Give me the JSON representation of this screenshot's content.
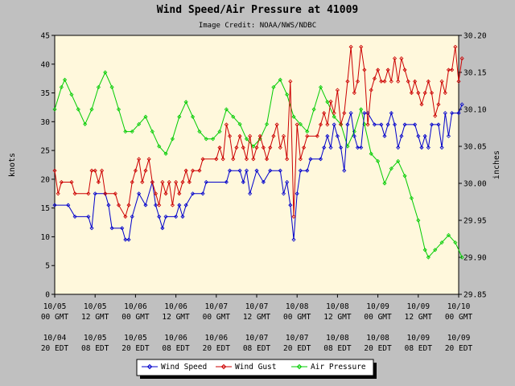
{
  "chart_data": {
    "type": "line",
    "title": "Wind Speed/Air Pressure at 41009",
    "subtitle": "Image Credit: NOAA/NWS/NDBC",
    "ylabel_left": "knots",
    "ylabel_right": "inches",
    "ylim_left": [
      0,
      45
    ],
    "ylim_right": [
      29.85,
      30.2
    ],
    "yticks_left": [
      "0",
      "5",
      "10",
      "15",
      "20",
      "25",
      "30",
      "35",
      "40",
      "45"
    ],
    "yticks_right": [
      "29.85",
      "29.90",
      "29.95",
      "30.00",
      "30.05",
      "30.10",
      "30.15",
      "30.20"
    ],
    "x_domain_hours": [
      0,
      120
    ],
    "x_ticks": [
      {
        "gmt": [
          "10/05",
          "00 GMT"
        ],
        "edt": [
          "10/04",
          "20 EDT"
        ]
      },
      {
        "gmt": [
          "10/05",
          "12 GMT"
        ],
        "edt": [
          "10/05",
          "08 EDT"
        ]
      },
      {
        "gmt": [
          "10/06",
          "00 GMT"
        ],
        "edt": [
          "10/05",
          "20 EDT"
        ]
      },
      {
        "gmt": [
          "10/06",
          "12 GMT"
        ],
        "edt": [
          "10/06",
          "08 EDT"
        ]
      },
      {
        "gmt": [
          "10/07",
          "00 GMT"
        ],
        "edt": [
          "10/06",
          "20 EDT"
        ]
      },
      {
        "gmt": [
          "10/07",
          "12 GMT"
        ],
        "edt": [
          "10/07",
          "08 EDT"
        ]
      },
      {
        "gmt": [
          "10/08",
          "00 GMT"
        ],
        "edt": [
          "10/07",
          "20 EDT"
        ]
      },
      {
        "gmt": [
          "10/08",
          "12 GMT"
        ],
        "edt": [
          "10/08",
          "08 EDT"
        ]
      },
      {
        "gmt": [
          "10/09",
          "00 GMT"
        ],
        "edt": [
          "10/08",
          "20 EDT"
        ]
      },
      {
        "gmt": [
          "10/09",
          "12 GMT"
        ],
        "edt": [
          "10/09",
          "08 EDT"
        ]
      },
      {
        "gmt": [
          "10/10",
          "00 GMT"
        ],
        "edt": [
          "10/09",
          "20 EDT"
        ]
      }
    ],
    "grid": false,
    "legend_position": "bottom",
    "colors": {
      "plot_bg": "#fff8dc",
      "page_bg": "#c0c0c0"
    },
    "series": [
      {
        "name": "Wind Speed",
        "axis": "left",
        "color": "#0000cc",
        "points": [
          [
            0,
            15.5
          ],
          [
            4,
            15.5
          ],
          [
            6,
            13.5
          ],
          [
            10,
            13.5
          ],
          [
            11,
            11.5
          ],
          [
            12,
            17.5
          ],
          [
            15,
            17.5
          ],
          [
            16,
            15.5
          ],
          [
            17,
            11.5
          ],
          [
            20,
            11.5
          ],
          [
            21,
            9.5
          ],
          [
            22,
            9.5
          ],
          [
            23,
            13.5
          ],
          [
            25,
            17.5
          ],
          [
            27,
            15.5
          ],
          [
            29,
            19.5
          ],
          [
            30,
            15.5
          ],
          [
            31,
            13.5
          ],
          [
            32,
            11.5
          ],
          [
            33,
            13.5
          ],
          [
            36,
            13.5
          ],
          [
            37,
            15.5
          ],
          [
            38,
            13.5
          ],
          [
            39,
            15.5
          ],
          [
            41,
            17.5
          ],
          [
            44,
            17.5
          ],
          [
            45,
            19.5
          ],
          [
            51,
            19.5
          ],
          [
            52,
            21.5
          ],
          [
            55,
            21.5
          ],
          [
            56,
            19.5
          ],
          [
            57,
            21.5
          ],
          [
            58,
            17.5
          ],
          [
            60,
            21.5
          ],
          [
            62,
            19.5
          ],
          [
            64,
            21.5
          ],
          [
            67,
            21.5
          ],
          [
            68,
            17.5
          ],
          [
            69,
            19.5
          ],
          [
            70,
            15.5
          ],
          [
            71,
            9.5
          ],
          [
            72,
            17.5
          ],
          [
            73,
            21.5
          ],
          [
            75,
            21.5
          ],
          [
            76,
            23.5
          ],
          [
            79,
            23.5
          ],
          [
            80,
            25.5
          ],
          [
            81,
            27.5
          ],
          [
            82,
            25.5
          ],
          [
            83,
            29.5
          ],
          [
            84,
            27.5
          ],
          [
            85,
            25.5
          ],
          [
            86,
            21.5
          ],
          [
            87,
            29.5
          ],
          [
            88,
            31.5
          ],
          [
            89,
            27.5
          ],
          [
            90,
            25.5
          ],
          [
            91,
            25.5
          ],
          [
            92,
            31.5
          ],
          [
            93,
            31.5
          ],
          [
            95,
            29.5
          ],
          [
            97,
            29.5
          ],
          [
            98,
            27.5
          ],
          [
            99,
            29.5
          ],
          [
            100,
            31.5
          ],
          [
            101,
            29.5
          ],
          [
            102,
            25.5
          ],
          [
            103,
            27.5
          ],
          [
            104,
            29.5
          ],
          [
            107,
            29.5
          ],
          [
            108,
            27.5
          ],
          [
            109,
            25.5
          ],
          [
            110,
            27.5
          ],
          [
            111,
            25.5
          ],
          [
            112,
            29.5
          ],
          [
            114,
            29.5
          ],
          [
            115,
            25.5
          ],
          [
            116,
            31.5
          ],
          [
            117,
            27.5
          ],
          [
            118,
            31.5
          ],
          [
            120,
            31.5
          ],
          [
            121,
            33
          ]
        ]
      },
      {
        "name": "Wind Gust",
        "axis": "left",
        "color": "#cc0000",
        "points": [
          [
            0,
            21.5
          ],
          [
            1,
            17.5
          ],
          [
            2,
            19.5
          ],
          [
            5,
            19.5
          ],
          [
            6,
            17.5
          ],
          [
            10,
            17.5
          ],
          [
            11,
            21.5
          ],
          [
            12,
            21.5
          ],
          [
            13,
            19.5
          ],
          [
            14,
            21.5
          ],
          [
            15,
            17.5
          ],
          [
            18,
            17.5
          ],
          [
            19,
            15.5
          ],
          [
            21,
            13.5
          ],
          [
            22,
            15.5
          ],
          [
            23,
            19.5
          ],
          [
            24,
            21.5
          ],
          [
            25,
            23.5
          ],
          [
            26,
            19.5
          ],
          [
            27,
            21.5
          ],
          [
            28,
            23.5
          ],
          [
            29,
            19.5
          ],
          [
            30,
            17.5
          ],
          [
            31,
            15.5
          ],
          [
            32,
            19.5
          ],
          [
            33,
            17.5
          ],
          [
            34,
            19.5
          ],
          [
            35,
            15.5
          ],
          [
            36,
            19.5
          ],
          [
            37,
            17.5
          ],
          [
            38,
            19.5
          ],
          [
            39,
            21.5
          ],
          [
            40,
            19.5
          ],
          [
            41,
            21.5
          ],
          [
            43,
            21.5
          ],
          [
            44,
            23.5
          ],
          [
            48,
            23.5
          ],
          [
            49,
            25.5
          ],
          [
            50,
            23.5
          ],
          [
            51,
            29.5
          ],
          [
            52,
            27.5
          ],
          [
            53,
            23.5
          ],
          [
            54,
            25.5
          ],
          [
            55,
            27.5
          ],
          [
            56,
            25.5
          ],
          [
            57,
            23.5
          ],
          [
            58,
            27.5
          ],
          [
            59,
            23.5
          ],
          [
            60,
            25.5
          ],
          [
            61,
            27.5
          ],
          [
            62,
            25.5
          ],
          [
            63,
            23.5
          ],
          [
            64,
            25.5
          ],
          [
            65,
            27.5
          ],
          [
            66,
            29.5
          ],
          [
            67,
            25.5
          ],
          [
            68,
            27.5
          ],
          [
            69,
            23.5
          ],
          [
            70,
            37
          ],
          [
            71,
            13.5
          ],
          [
            72,
            29.5
          ],
          [
            73,
            23.5
          ],
          [
            74,
            25.5
          ],
          [
            75,
            27.5
          ],
          [
            78,
            27.5
          ],
          [
            79,
            29.5
          ],
          [
            80,
            31.5
          ],
          [
            81,
            29.5
          ],
          [
            82,
            33.5
          ],
          [
            83,
            31.5
          ],
          [
            84,
            35.5
          ],
          [
            85,
            29.5
          ],
          [
            86,
            31.5
          ],
          [
            87,
            37
          ],
          [
            88,
            43
          ],
          [
            89,
            35
          ],
          [
            90,
            37
          ],
          [
            91,
            43
          ],
          [
            92,
            39
          ],
          [
            93,
            29.5
          ],
          [
            94,
            35.5
          ],
          [
            95,
            37.5
          ],
          [
            96,
            39
          ],
          [
            97,
            37
          ],
          [
            98,
            37
          ],
          [
            99,
            39
          ],
          [
            100,
            37
          ],
          [
            101,
            41
          ],
          [
            102,
            37
          ],
          [
            103,
            41
          ],
          [
            104,
            39
          ],
          [
            105,
            37
          ],
          [
            106,
            35
          ],
          [
            107,
            37
          ],
          [
            108,
            35
          ],
          [
            109,
            33
          ],
          [
            110,
            35
          ],
          [
            111,
            37
          ],
          [
            112,
            35
          ],
          [
            113,
            31
          ],
          [
            114,
            33
          ],
          [
            115,
            37
          ],
          [
            116,
            35
          ],
          [
            117,
            39
          ],
          [
            118,
            39
          ],
          [
            119,
            43
          ],
          [
            120,
            37
          ],
          [
            121,
            41
          ]
        ]
      },
      {
        "name": "Air Pressure",
        "axis": "right",
        "color": "#00cc00",
        "points": [
          [
            0,
            30.1
          ],
          [
            2,
            30.13
          ],
          [
            3,
            30.14
          ],
          [
            5,
            30.12
          ],
          [
            7,
            30.1
          ],
          [
            9,
            30.08
          ],
          [
            11,
            30.1
          ],
          [
            13,
            30.13
          ],
          [
            15,
            30.15
          ],
          [
            17,
            30.13
          ],
          [
            19,
            30.1
          ],
          [
            21,
            30.07
          ],
          [
            23,
            30.07
          ],
          [
            25,
            30.08
          ],
          [
            27,
            30.09
          ],
          [
            29,
            30.07
          ],
          [
            31,
            30.05
          ],
          [
            33,
            30.04
          ],
          [
            35,
            30.06
          ],
          [
            37,
            30.09
          ],
          [
            39,
            30.11
          ],
          [
            41,
            30.09
          ],
          [
            43,
            30.07
          ],
          [
            45,
            30.06
          ],
          [
            47,
            30.06
          ],
          [
            49,
            30.07
          ],
          [
            51,
            30.1
          ],
          [
            53,
            30.09
          ],
          [
            55,
            30.08
          ],
          [
            57,
            30.06
          ],
          [
            59,
            30.05
          ],
          [
            61,
            30.06
          ],
          [
            63,
            30.08
          ],
          [
            65,
            30.13
          ],
          [
            67,
            30.14
          ],
          [
            69,
            30.12
          ],
          [
            71,
            30.09
          ],
          [
            73,
            30.08
          ],
          [
            75,
            30.07
          ],
          [
            77,
            30.1
          ],
          [
            79,
            30.13
          ],
          [
            81,
            30.11
          ],
          [
            83,
            30.09
          ],
          [
            85,
            30.08
          ],
          [
            87,
            30.05
          ],
          [
            89,
            30.07
          ],
          [
            91,
            30.1
          ],
          [
            92,
            30.08
          ],
          [
            94,
            30.04
          ],
          [
            96,
            30.03
          ],
          [
            98,
            30.0
          ],
          [
            100,
            30.02
          ],
          [
            102,
            30.03
          ],
          [
            104,
            30.01
          ],
          [
            106,
            29.98
          ],
          [
            108,
            29.95
          ],
          [
            110,
            29.91
          ],
          [
            111,
            29.9
          ],
          [
            113,
            29.91
          ],
          [
            115,
            29.92
          ],
          [
            117,
            29.93
          ],
          [
            119,
            29.92
          ],
          [
            121,
            29.9
          ]
        ]
      }
    ]
  }
}
